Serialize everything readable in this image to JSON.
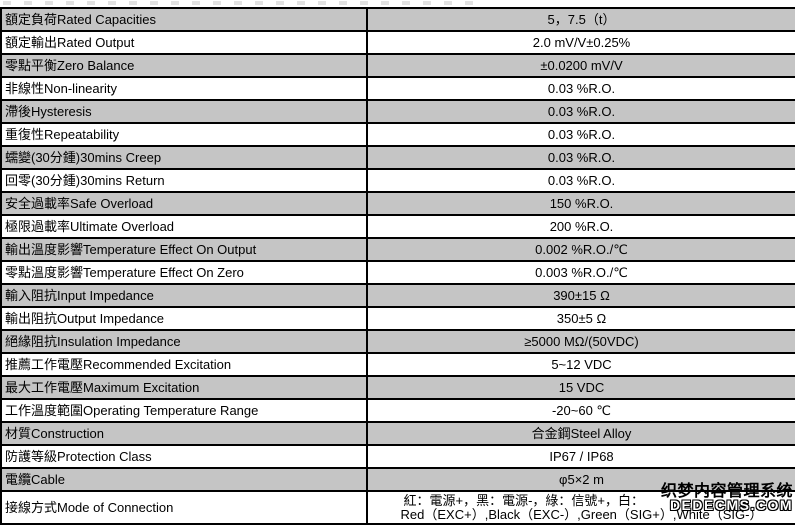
{
  "colors": {
    "row_alt_gray": "#c5c5c5",
    "row_white": "#ffffff",
    "border": "#000000",
    "text": "#000000"
  },
  "table": {
    "rows": [
      {
        "label": "額定負荷Rated Capacities",
        "value": "5，7.5（t）"
      },
      {
        "label": "額定輸出Rated Output",
        "value": "2.0 mV/V±0.25%"
      },
      {
        "label": "零點平衡Zero Balance",
        "value": "±0.0200 mV/V"
      },
      {
        "label": "非線性Non-linearity",
        "value": "0.03 %R.O."
      },
      {
        "label": "滯後Hysteresis",
        "value": "0.03 %R.O."
      },
      {
        "label": "重復性Repeatability",
        "value": "0.03 %R.O."
      },
      {
        "label": "蠕變(30分鍾)30mins Creep",
        "value": "0.03 %R.O."
      },
      {
        "label": "回零(30分鍾)30mins Return",
        "value": "0.03 %R.O."
      },
      {
        "label": "安全過載率Safe Overload",
        "value": "150 %R.O."
      },
      {
        "label": "極限過載率Ultimate Overload",
        "value": "200 %R.O."
      },
      {
        "label": "輸出溫度影響Temperature Effect On Output",
        "value": "0.002 %R.O./℃"
      },
      {
        "label": "零點溫度影響Temperature Effect On Zero",
        "value": "0.003 %R.O./℃"
      },
      {
        "label": "輸入阻抗Input Impedance",
        "value": "390±15 Ω"
      },
      {
        "label": "輸出阻抗Output Impedance",
        "value": "350±5 Ω"
      },
      {
        "label": "絕緣阻抗Insulation Impedance",
        "value": "≥5000 MΩ/(50VDC)"
      },
      {
        "label": "推薦工作電壓Recommended Excitation",
        "value": "5~12 VDC"
      },
      {
        "label": "最大工作電壓Maximum Excitation",
        "value": "15 VDC"
      },
      {
        "label": "工作溫度範圍Operating Temperature Range",
        "value": "-20~60 ℃"
      },
      {
        "label": "材質Construction",
        "value": "合金鋼Steel Alloy"
      },
      {
        "label": "防護等級Protection Class",
        "value": "IP67 / IP68"
      },
      {
        "label": "電纜Cable",
        "value": "φ5×2 m"
      }
    ],
    "connection_row": {
      "label": "接線方式Mode of Connection",
      "value_line1": "紅：電源+，黑：電源-，綠：信號+，白：",
      "value_line2": "Red（EXC+）,Black（EXC-）,Green（SIG+）,White（SIG-）"
    }
  },
  "watermark": {
    "line1": "织梦内容管理系统",
    "line2": "DEDECMS.COM"
  }
}
